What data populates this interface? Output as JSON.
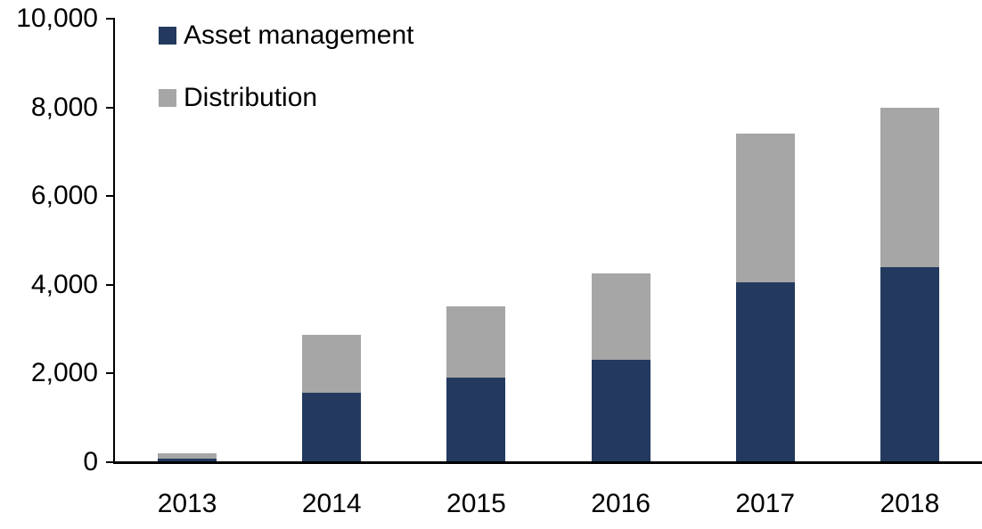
{
  "chart_data": {
    "type": "bar",
    "stacked": true,
    "title": "",
    "xlabel": "",
    "ylabel": "",
    "categories": [
      "2013",
      "2014",
      "2015",
      "2016",
      "2017",
      "2018"
    ],
    "series": [
      {
        "name": "Asset management",
        "color": "#233A5E",
        "values": [
          80,
          1550,
          1900,
          2300,
          4050,
          4400
        ]
      },
      {
        "name": "Distribution",
        "color": "#A6A6A6",
        "values": [
          110,
          1320,
          1600,
          1950,
          3350,
          3600
        ]
      }
    ],
    "totals": [
      190,
      2870,
      3500,
      4250,
      7400,
      8000
    ],
    "ylim": [
      0,
      10000
    ],
    "ytick_interval": 2000,
    "ytick_labels": [
      "0",
      "2,000",
      "4,000",
      "6,000",
      "8,000",
      "10,000"
    ],
    "grid": false,
    "legend_position": "top-left-inside"
  },
  "colors": {
    "axis": "#000000",
    "background": "#FFFFFF",
    "text": "#000000",
    "asset_management": "#233A5E",
    "distribution": "#A6A6A6"
  }
}
